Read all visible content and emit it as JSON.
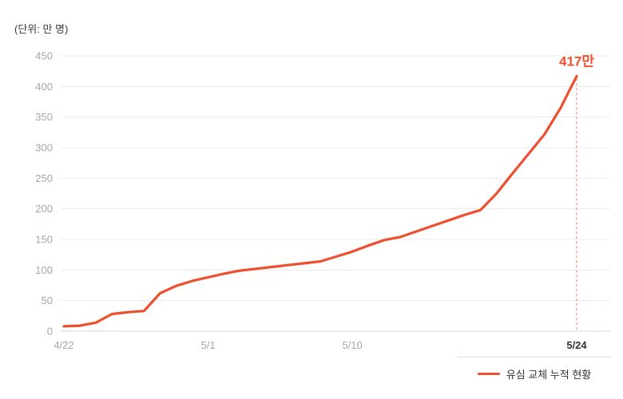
{
  "page": {
    "background": "#ffffff"
  },
  "unit_label": "(단위: 만 명)",
  "annotation": {
    "text": "417만",
    "color": "#ee4f2e"
  },
  "legend": {
    "label": "유심 교체 누적 현황",
    "line_color": "#ee4f2e"
  },
  "colors": {
    "line": "#ee4f2e",
    "grid": "#ececec",
    "axis_baseline": "#d9d9d9",
    "tick_label": "#a6a6a6",
    "tick_label_emphasis": "#333333"
  },
  "chart_data": {
    "type": "line",
    "title": "",
    "unit": "(단위: 만 명)",
    "x": [
      "4/22",
      "4/23",
      "4/24",
      "4/25",
      "4/26",
      "4/27",
      "4/28",
      "4/29",
      "4/30",
      "5/1",
      "5/2",
      "5/3",
      "5/4",
      "5/5",
      "5/6",
      "5/7",
      "5/8",
      "5/9",
      "5/10",
      "5/11",
      "5/12",
      "5/13",
      "5/14",
      "5/15",
      "5/16",
      "5/17",
      "5/18",
      "5/19",
      "5/20",
      "5/21",
      "5/22",
      "5/23",
      "5/24"
    ],
    "series": [
      {
        "name": "유심 교체 누적 현황",
        "color": "#ee4f2e",
        "values": [
          8,
          9,
          14,
          28,
          31,
          33,
          62,
          74,
          82,
          88,
          94,
          99,
          102,
          105,
          108,
          111,
          114,
          122,
          130,
          140,
          149,
          154,
          163,
          172,
          181,
          190,
          198,
          225,
          258,
          290,
          322,
          365,
          417
        ]
      }
    ],
    "x_tick_labels": [
      "4/22",
      "5/1",
      "5/10",
      "5/24"
    ],
    "y_ticks": [
      0,
      50,
      100,
      150,
      200,
      250,
      300,
      350,
      400,
      450
    ],
    "ylim": [
      0,
      450
    ],
    "grid": true,
    "dashed_marker_x": "5/24",
    "annotation": {
      "text": "417만",
      "x": "5/24",
      "y": 417,
      "color": "#ee4f2e"
    },
    "legend_position": "bottom-right"
  }
}
